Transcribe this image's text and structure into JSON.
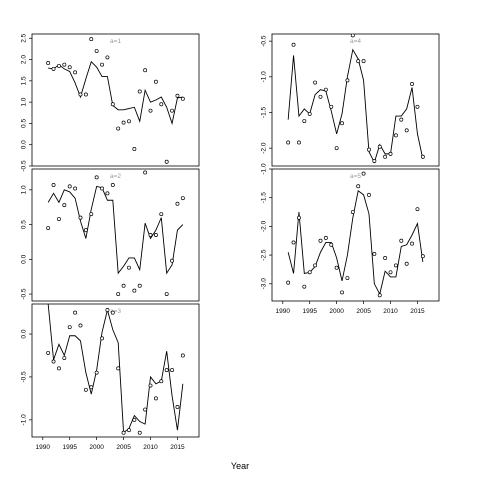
{
  "chart_data": {
    "xlabel": "Year",
    "panels": [
      {
        "type": "line",
        "title": "a=1",
        "xlim": [
          1988,
          2019
        ],
        "ylim": [
          -0.5,
          2.6
        ],
        "yticks": [
          -0.5,
          0.0,
          0.5,
          1.0,
          1.5,
          2.0,
          2.5
        ],
        "xticks": [],
        "fitted": {
          "x": [
            1991,
            1992,
            1993,
            1994,
            1995,
            1996,
            1997,
            1998,
            1999,
            2000,
            2001,
            2002,
            2003,
            2004,
            2005,
            2006,
            2007,
            2008,
            2009,
            2010,
            2011,
            2012,
            2013,
            2014,
            2015,
            2016
          ],
          "y": [
            1.8,
            1.78,
            1.88,
            1.78,
            1.72,
            1.45,
            1.12,
            1.55,
            1.95,
            1.82,
            1.6,
            1.6,
            0.92,
            0.82,
            0.82,
            0.85,
            0.88,
            0.55,
            1.28,
            1.0,
            1.05,
            1.12,
            0.88,
            0.5,
            1.1,
            1.12
          ]
        },
        "observed": {
          "x": [
            1991,
            1992,
            1993,
            1994,
            1995,
            1996,
            1997,
            1998,
            1999,
            2000,
            2001,
            2002,
            2003,
            2004,
            2005,
            2006,
            2007,
            2008,
            2009,
            2010,
            2011,
            2012,
            2013,
            2014,
            2015,
            2016
          ],
          "y": [
            1.92,
            1.78,
            1.85,
            1.88,
            1.82,
            1.7,
            1.18,
            1.18,
            2.48,
            2.2,
            1.88,
            2.05,
            0.95,
            0.38,
            0.52,
            0.55,
            -0.1,
            1.25,
            1.75,
            0.8,
            1.48,
            0.95,
            -0.4,
            0.8,
            1.15,
            1.08
          ]
        }
      },
      {
        "type": "line",
        "title": "a=2",
        "xlim": [
          1988,
          2019
        ],
        "ylim": [
          -0.6,
          1.3
        ],
        "yticks": [
          -0.5,
          0.0,
          0.5,
          1.0
        ],
        "xticks": [],
        "fitted": {
          "x": [
            1991,
            1992,
            1993,
            1994,
            1995,
            1996,
            1997,
            1998,
            1999,
            2000,
            2001,
            2002,
            2003,
            2004,
            2005,
            2006,
            2007,
            2008,
            2009,
            2010,
            2011,
            2012,
            2013,
            2014,
            2015,
            2016
          ],
          "y": [
            0.82,
            0.95,
            0.82,
            1.0,
            0.97,
            0.88,
            0.55,
            0.3,
            0.72,
            1.05,
            1.03,
            0.85,
            0.85,
            -0.2,
            -0.1,
            0.02,
            0.02,
            -0.15,
            0.52,
            0.3,
            0.42,
            0.6,
            -0.2,
            -0.08,
            0.42,
            0.5
          ]
        },
        "observed": {
          "x": [
            1991,
            1992,
            1993,
            1994,
            1995,
            1996,
            1997,
            1998,
            1999,
            2000,
            2001,
            2002,
            2003,
            2004,
            2005,
            2006,
            2007,
            2008,
            2009,
            2010,
            2011,
            2012,
            2013,
            2014,
            2015,
            2016
          ],
          "y": [
            0.45,
            1.07,
            0.58,
            0.78,
            1.05,
            1.02,
            0.6,
            0.42,
            0.65,
            1.18,
            1.02,
            0.95,
            1.07,
            -0.5,
            -0.38,
            -0.12,
            -0.45,
            -0.38,
            1.25,
            0.35,
            0.35,
            0.65,
            -0.5,
            -0.02,
            0.8,
            0.88
          ]
        }
      },
      {
        "type": "line",
        "title": "a=3",
        "xlim": [
          1988,
          2019
        ],
        "ylim": [
          -1.2,
          0.35
        ],
        "yticks": [
          -1.0,
          -0.5,
          0.0
        ],
        "xticks": [
          1990,
          1995,
          2000,
          2005,
          2010,
          2015
        ],
        "fitted": {
          "x": [
            1991,
            1992,
            1993,
            1994,
            1995,
            1996,
            1997,
            1998,
            1999,
            2000,
            2001,
            2002,
            2003,
            2004,
            2005,
            2006,
            2007,
            2008,
            2009,
            2010,
            2011,
            2012,
            2013,
            2014,
            2015,
            2016
          ],
          "y": [
            0.35,
            -0.3,
            -0.12,
            -0.25,
            -0.02,
            -0.02,
            -0.08,
            -0.45,
            -0.7,
            -0.42,
            0.02,
            0.28,
            0.05,
            -0.1,
            -1.15,
            -1.1,
            -0.95,
            -1.02,
            -1.05,
            -0.5,
            -0.58,
            -0.55,
            -0.2,
            -0.72,
            -1.12,
            -0.58
          ]
        },
        "observed": {
          "x": [
            1991,
            1992,
            1993,
            1994,
            1995,
            1996,
            1997,
            1998,
            1999,
            2000,
            2001,
            2002,
            2003,
            2004,
            2005,
            2006,
            2007,
            2008,
            2009,
            2010,
            2011,
            2012,
            2013,
            2014,
            2015,
            2016
          ],
          "y": [
            -0.22,
            -0.32,
            -0.4,
            -0.28,
            0.08,
            0.25,
            0.1,
            -0.65,
            -0.62,
            -0.45,
            -0.05,
            0.28,
            0.25,
            -0.4,
            -1.15,
            -1.12,
            -1.0,
            -1.15,
            -0.88,
            -0.6,
            -0.75,
            -0.55,
            -0.42,
            -0.42,
            -0.85,
            -0.25
          ]
        }
      },
      {
        "type": "line",
        "title": "a=4",
        "xlim": [
          1988,
          2019
        ],
        "ylim": [
          -2.25,
          -0.4
        ],
        "yticks": [
          -2.0,
          -1.5,
          -1.0,
          -0.5
        ],
        "xticks": [],
        "fitted": {
          "x": [
            1991,
            1992,
            1993,
            1994,
            1995,
            1996,
            1997,
            1998,
            1999,
            2000,
            2001,
            2002,
            2003,
            2004,
            2005,
            2006,
            2007,
            2008,
            2009,
            2010,
            2011,
            2012,
            2013,
            2014,
            2015,
            2016
          ],
          "y": [
            -1.6,
            -0.7,
            -1.55,
            -1.45,
            -1.52,
            -1.25,
            -1.18,
            -1.2,
            -1.48,
            -1.8,
            -1.52,
            -1.0,
            -0.62,
            -0.75,
            -1.05,
            -2.05,
            -2.2,
            -1.95,
            -2.08,
            -2.08,
            -1.55,
            -1.55,
            -1.45,
            -1.15,
            -1.8,
            -2.15
          ]
        },
        "observed": {
          "x": [
            1991,
            1992,
            1993,
            1994,
            1995,
            1996,
            1997,
            1998,
            1999,
            2000,
            2001,
            2002,
            2003,
            2004,
            2005,
            2006,
            2007,
            2008,
            2009,
            2010,
            2011,
            2012,
            2013,
            2014,
            2015,
            2016
          ],
          "y": [
            -1.92,
            -0.55,
            -1.92,
            -1.62,
            -1.52,
            -1.08,
            -1.28,
            -1.18,
            -1.42,
            -2.0,
            -1.65,
            -1.05,
            -0.42,
            -0.78,
            -0.78,
            -2.02,
            -2.18,
            -1.98,
            -2.12,
            -2.08,
            -1.82,
            -1.6,
            -1.75,
            -1.1,
            -1.42,
            -2.12
          ]
        }
      },
      {
        "type": "line",
        "title": "a=5",
        "xlim": [
          1988,
          2019
        ],
        "ylim": [
          -3.3,
          -1.0
        ],
        "yticks": [
          -3.0,
          -2.5,
          -2.0,
          -1.5,
          -1.0
        ],
        "xticks": [
          1990,
          1995,
          2000,
          2005,
          2010,
          2015
        ],
        "fitted": {
          "x": [
            1991,
            1992,
            1993,
            1994,
            1995,
            1996,
            1997,
            1998,
            1999,
            2000,
            2001,
            2002,
            2003,
            2004,
            2005,
            2006,
            2007,
            2008,
            2009,
            2010,
            2011,
            2012,
            2013,
            2014,
            2015,
            2016
          ],
          "y": [
            -2.45,
            -2.82,
            -1.75,
            -2.82,
            -2.8,
            -2.7,
            -2.45,
            -2.28,
            -2.28,
            -2.55,
            -2.95,
            -2.5,
            -1.85,
            -1.38,
            -1.45,
            -1.78,
            -3.0,
            -3.18,
            -2.78,
            -2.88,
            -2.88,
            -2.35,
            -2.32,
            -2.15,
            -1.95,
            -2.62
          ]
        },
        "observed": {
          "x": [
            1991,
            1992,
            1993,
            1994,
            1995,
            1996,
            1997,
            1998,
            1999,
            2000,
            2001,
            2002,
            2003,
            2004,
            2005,
            2006,
            2007,
            2008,
            2009,
            2010,
            2011,
            2012,
            2013,
            2014,
            2015,
            2016
          ],
          "y": [
            -2.98,
            -2.28,
            -1.85,
            -3.05,
            -2.8,
            -2.68,
            -2.25,
            -2.2,
            -2.32,
            -2.72,
            -3.15,
            -2.9,
            -1.75,
            -1.3,
            -1.08,
            -1.45,
            -2.48,
            -3.2,
            -2.55,
            -2.8,
            -2.68,
            -2.25,
            -2.65,
            -2.3,
            -1.7,
            -2.52
          ]
        }
      }
    ]
  }
}
